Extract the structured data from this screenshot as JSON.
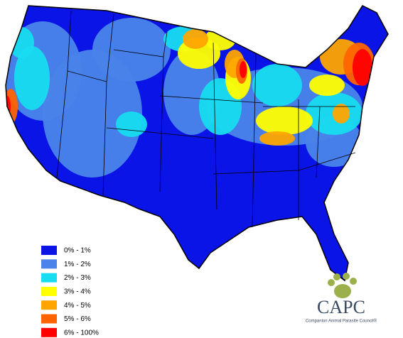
{
  "legend": {
    "items": [
      {
        "label": "0% - 1%",
        "color": "#0a14e6"
      },
      {
        "label": "1% - 2%",
        "color": "#4a84ea"
      },
      {
        "label": "2% - 3%",
        "color": "#18dcf0"
      },
      {
        "label": "3% - 4%",
        "color": "#ffff00"
      },
      {
        "label": "4% - 5%",
        "color": "#ffa500"
      },
      {
        "label": "5% - 6%",
        "color": "#ff6400"
      },
      {
        "label": "6% - 100%",
        "color": "#ff0000"
      }
    ]
  },
  "logo": {
    "title": "CAPC",
    "subtitle": "Companion Animal Parasite Council®"
  }
}
